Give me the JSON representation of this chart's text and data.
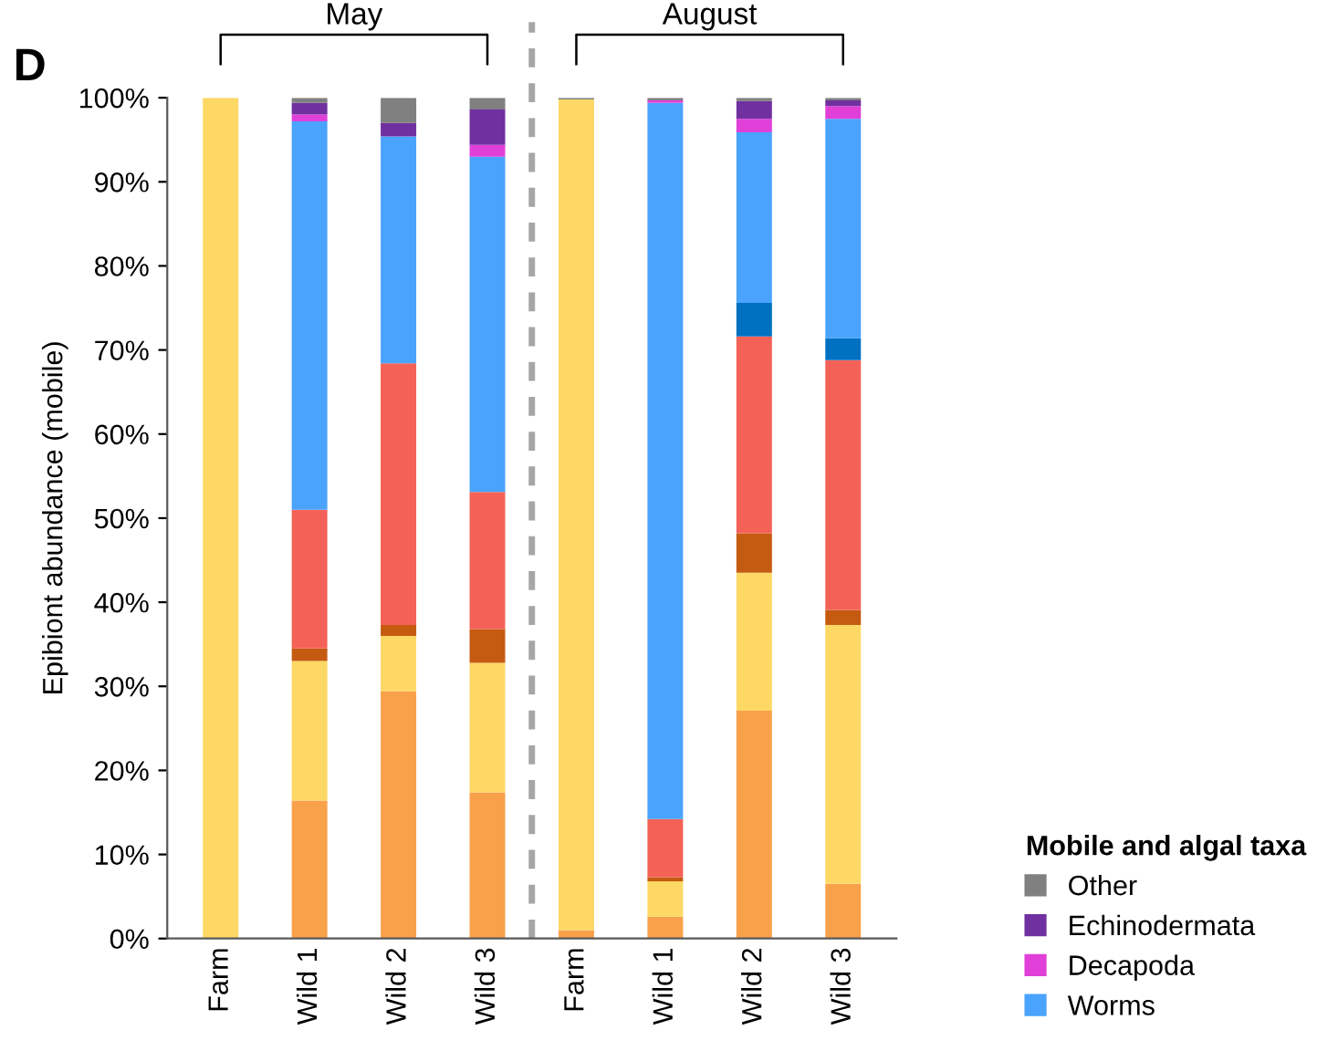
{
  "chart_data": {
    "type": "bar",
    "stacked": true,
    "categories": [
      "Farm",
      "Wild 1",
      "Wild 2",
      "Wild 3",
      "Farm",
      "Wild 1",
      "Wild 2",
      "Wild 3"
    ],
    "ylabel": "Epibiont abundance (mobile)",
    "ylim": [
      0,
      100
    ],
    "yticks": [
      {
        "value": 0,
        "label": "0%"
      },
      {
        "value": 10,
        "label": "10%"
      },
      {
        "value": 20,
        "label": "20%"
      },
      {
        "value": 30,
        "label": "30%"
      },
      {
        "value": 40,
        "label": "40%"
      },
      {
        "value": 50,
        "label": "50%"
      },
      {
        "value": 60,
        "label": "60%"
      },
      {
        "value": 70,
        "label": "70%"
      },
      {
        "value": 80,
        "label": "80%"
      },
      {
        "value": 90,
        "label": "90%"
      },
      {
        "value": 100,
        "label": "100%"
      }
    ],
    "series": [
      {
        "color": "#f9a04a",
        "values": [
          0,
          16.4,
          29.4,
          17.4,
          1.0,
          2.6,
          27.1,
          6.5
        ]
      },
      {
        "color": "#fdd865",
        "values": [
          100,
          16.6,
          6.6,
          15.4,
          98.8,
          4.2,
          16.4,
          30.8
        ]
      },
      {
        "color": "#c55a11",
        "values": [
          0,
          1.5,
          1.3,
          4.0,
          0,
          0.5,
          4.7,
          1.8
        ]
      },
      {
        "color": "#f46257",
        "values": [
          0,
          16.5,
          31.1,
          16.3,
          0,
          6.9,
          23.4,
          29.7
        ]
      },
      {
        "color": "#0070c0",
        "values": [
          0,
          0,
          0,
          0,
          0,
          0,
          4.0,
          2.6
        ]
      },
      {
        "name": "Worms",
        "color": "#4aa3fd",
        "values": [
          0,
          46.2,
          27.0,
          39.9,
          0,
          85.2,
          20.3,
          26.1
        ]
      },
      {
        "name": "Decapoda",
        "color": "#e040d8",
        "values": [
          0,
          0.8,
          0,
          1.4,
          0,
          0.3,
          1.6,
          1.5
        ]
      },
      {
        "name": "Echinodermata",
        "color": "#7030a0",
        "values": [
          0,
          1.4,
          1.6,
          4.2,
          0,
          0,
          2.1,
          0.7
        ]
      },
      {
        "name": "Other",
        "color": "#808080",
        "values": [
          0,
          0.6,
          3.0,
          1.4,
          0.2,
          0.3,
          0.4,
          0.3
        ]
      }
    ],
    "legend": "bottom right",
    "legend_title": "Mobile and algal taxa",
    "grid": false,
    "annotations": [
      "D",
      "May",
      "August"
    ]
  }
}
